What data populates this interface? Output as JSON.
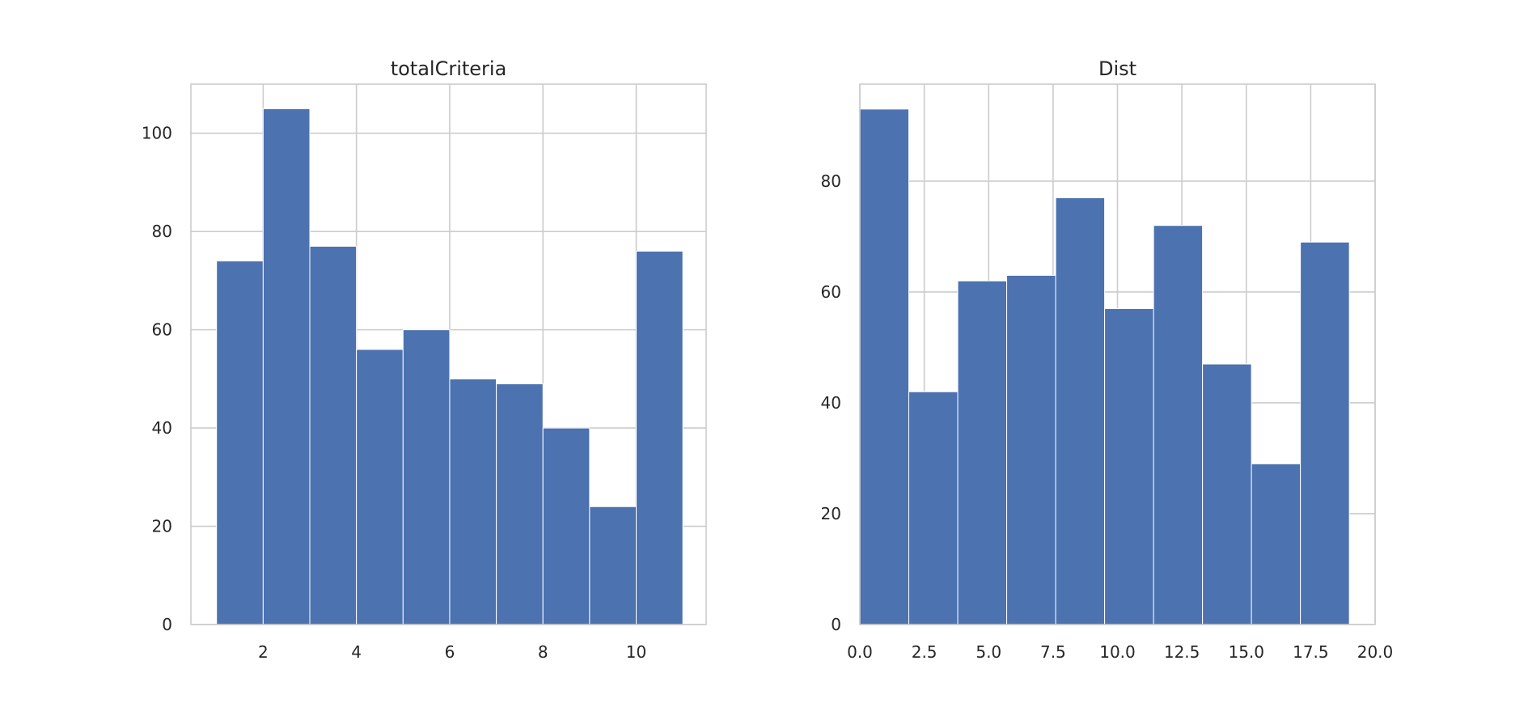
{
  "chart_data": [
    {
      "type": "bar",
      "title": "totalCriteria",
      "xlabel": "",
      "ylabel": "",
      "bin_edges": [
        1,
        2,
        3,
        4,
        5,
        6,
        7,
        8,
        9,
        10,
        11
      ],
      "values": [
        74,
        105,
        77,
        56,
        60,
        50,
        49,
        40,
        24,
        76
      ],
      "xlim": [
        0.45,
        11.5
      ],
      "ylim": [
        0,
        110
      ],
      "xticks": [
        2,
        4,
        6,
        8,
        10
      ],
      "xtick_labels": [
        "2",
        "4",
        "6",
        "8",
        "10"
      ],
      "yticks": [
        0,
        20,
        40,
        60,
        80,
        100
      ],
      "ytick_labels": [
        "0",
        "20",
        "40",
        "60",
        "80",
        "100"
      ],
      "grid": true,
      "color": "#4c72b0"
    },
    {
      "type": "bar",
      "title": "Dist",
      "xlabel": "",
      "ylabel": "",
      "bin_edges": [
        0,
        1.9,
        3.8,
        5.7,
        7.6,
        9.5,
        11.4,
        13.3,
        15.2,
        17.1,
        19.0
      ],
      "values": [
        93,
        42,
        62,
        63,
        77,
        57,
        72,
        47,
        29,
        69
      ],
      "xlim": [
        0,
        20
      ],
      "ylim": [
        0,
        97.5
      ],
      "xticks": [
        0,
        2.5,
        5,
        7.5,
        10,
        12.5,
        15,
        17.5,
        20
      ],
      "xtick_labels": [
        "0.0",
        "2.5",
        "5.0",
        "7.5",
        "10.0",
        "12.5",
        "15.0",
        "17.5",
        "20.0"
      ],
      "yticks": [
        0,
        20,
        40,
        60,
        80
      ],
      "ytick_labels": [
        "0",
        "20",
        "40",
        "60",
        "80"
      ],
      "grid": true,
      "color": "#4c72b0"
    }
  ]
}
